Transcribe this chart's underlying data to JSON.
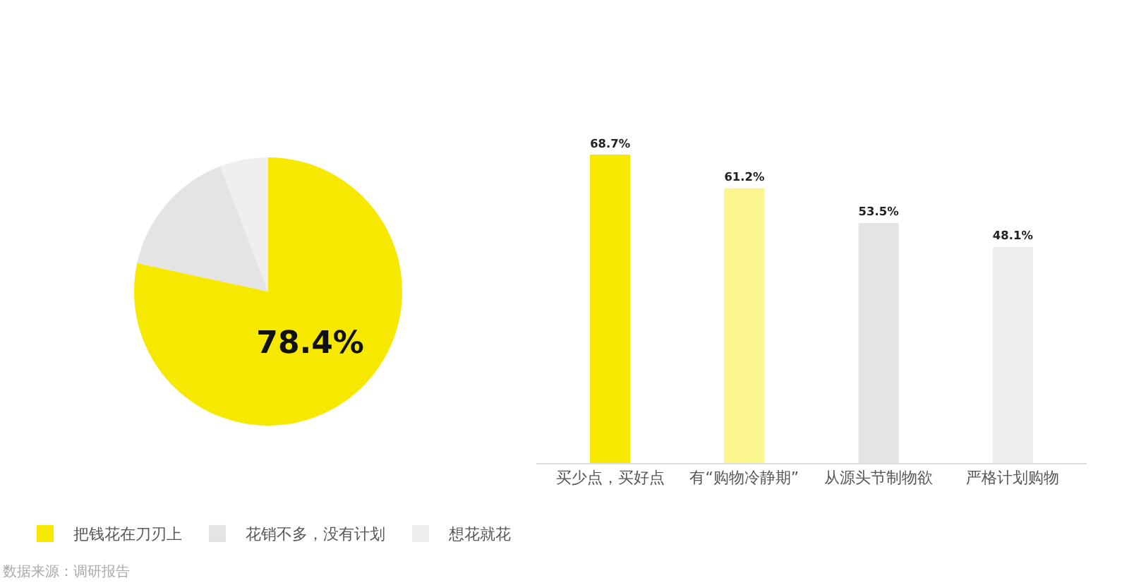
{
  "chart_data": [
    {
      "type": "pie",
      "categories": [
        "把钱花在刀刃上",
        "花销不多，没有计划",
        "想花就花"
      ],
      "values": [
        78.4,
        15.8,
        5.8
      ],
      "colors": [
        "#f7e800",
        "#e4e4e4",
        "#efefef"
      ],
      "value_labels": [
        "78.4%",
        null,
        null
      ],
      "legend": "bottom",
      "annotations": [
        "数据来源：调研报告"
      ]
    },
    {
      "type": "bar",
      "categories": [
        "买少点，买好点",
        "有“购物冷静期”",
        "从源头节制物欲",
        "严格计划购物"
      ],
      "values": [
        68.7,
        61.2,
        53.5,
        48.1
      ],
      "colors": [
        "#f7e800",
        "#fbf58e",
        "#e4e4e4",
        "#efefef"
      ],
      "value_labels": [
        "68.7%",
        "61.2%",
        "53.5%",
        "48.1%"
      ]
    }
  ]
}
